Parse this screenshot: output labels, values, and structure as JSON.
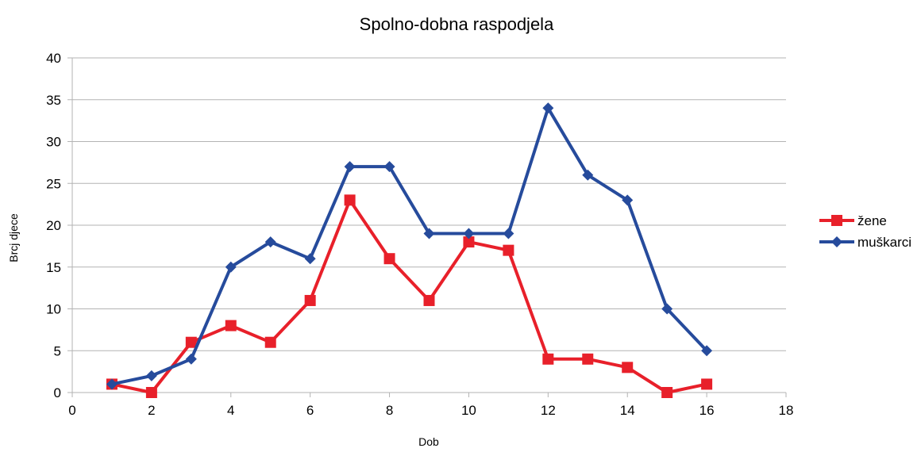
{
  "chart_data": {
    "type": "line",
    "title": "Spolno-dobna raspodjela",
    "xlabel": "Dob",
    "ylabel": "Brcj djece",
    "xlim": [
      0,
      18
    ],
    "ylim": [
      0,
      40
    ],
    "xticks": [
      0,
      2,
      4,
      6,
      8,
      10,
      12,
      14,
      16,
      18
    ],
    "yticks": [
      0,
      5,
      10,
      15,
      20,
      25,
      30,
      35,
      40
    ],
    "grid": "horizontal",
    "legend_position": "right",
    "series": [
      {
        "name": "žene",
        "color": "#e8202a",
        "marker": "square",
        "x": [
          1,
          2,
          3,
          4,
          5,
          6,
          7,
          8,
          9,
          10,
          11,
          12,
          13,
          14,
          15,
          16
        ],
        "y": [
          1,
          0,
          6,
          8,
          6,
          11,
          23,
          16,
          11,
          18,
          17,
          4,
          4,
          3,
          0,
          1
        ]
      },
      {
        "name": "muškarci",
        "color": "#264b9c",
        "marker": "diamond",
        "x": [
          1,
          2,
          3,
          4,
          5,
          6,
          7,
          8,
          9,
          10,
          11,
          12,
          13,
          14,
          15,
          16
        ],
        "y": [
          1,
          2,
          4,
          15,
          18,
          16,
          27,
          27,
          19,
          19,
          19,
          34,
          26,
          23,
          10,
          5
        ]
      }
    ]
  }
}
